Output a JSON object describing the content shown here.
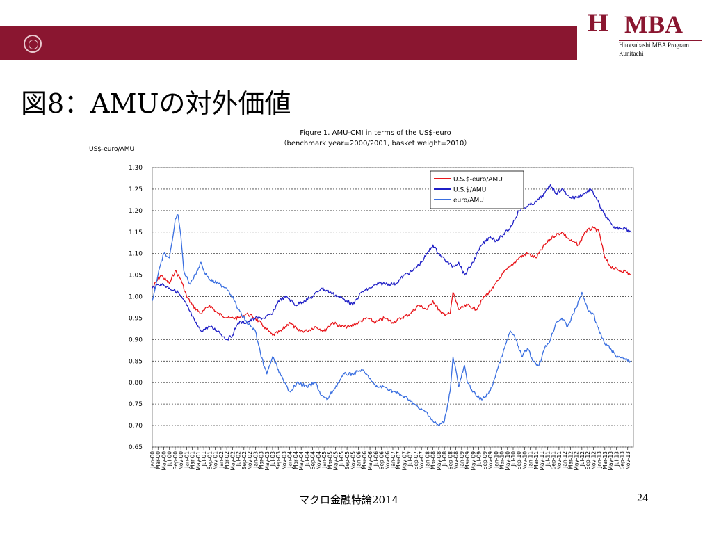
{
  "slide": {
    "title": "図8：AMUの対外価値",
    "footer": "マクロ金融特論2014",
    "page_number": "24"
  },
  "logo": {
    "mark": "H",
    "name": "MBA",
    "line1": "Hitotsubashi MBA Program",
    "line2": "Kunitachi"
  },
  "colors": {
    "band": "#8a1630",
    "usd_euro": "#e8161b",
    "usd": "#1f1fc6",
    "euro": "#3a6fe0"
  },
  "chart_data": {
    "type": "line",
    "title": "Figure 1. AMU-CMI in terms of the US$-euro",
    "subtitle": "（benchmark year=2000/2001, basket weight=2010）",
    "ylabel": "US$-euro/AMU",
    "xlabel": "",
    "ylim": [
      0.65,
      1.3
    ],
    "yticks": [
      "1.30",
      "1.25",
      "1.20",
      "1.15",
      "1.10",
      "1.05",
      "1.00",
      "0.95",
      "0.90",
      "0.85",
      "0.80",
      "0.75",
      "0.70",
      "0.65"
    ],
    "grid": true,
    "legend_position": "top-right",
    "x_ticks": [
      "Jan-00",
      "Mar-00",
      "May-00",
      "Jul-00",
      "Sep-00",
      "Nov-00",
      "Jan-01",
      "Mar-01",
      "May-01",
      "Jul-01",
      "Sep-01",
      "Nov-01",
      "Jan-02",
      "Mar-02",
      "May-02",
      "Jul-02",
      "Sep-02",
      "Nov-02",
      "Jan-03",
      "Mar-03",
      "May-03",
      "Jul-03",
      "Sep-03",
      "Nov-03",
      "Jan-04",
      "Mar-04",
      "May-04",
      "Jul-04",
      "Sep-04",
      "Nov-04",
      "Jan-05",
      "Mar-05",
      "May-05",
      "Jul-05",
      "Sep-05",
      "Nov-05",
      "Jan-06",
      "Mar-06",
      "May-06",
      "Jul-06",
      "Sep-06",
      "Nov-06",
      "Jan-07",
      "Mar-07",
      "May-07",
      "Jul-07",
      "Sep-07",
      "Nov-07",
      "Jan-08",
      "Mar-08",
      "May-08",
      "Jul-08",
      "Sep-08",
      "Nov-08",
      "Jan-09",
      "Mar-09",
      "May-09",
      "Jul-09",
      "Sep-09",
      "Nov-09",
      "Jan-10",
      "Mar-10",
      "May-10",
      "Jul-10",
      "Sep-10",
      "Nov-10",
      "Jan-11",
      "Mar-11",
      "May-11",
      "Jul-11",
      "Sep-11",
      "Nov-11",
      "Jan-12",
      "Mar-12",
      "May-12",
      "Jul-12",
      "Sep-12",
      "Nov-12",
      "Jan-13",
      "Mar-13",
      "May-13",
      "Jul-13",
      "Sep-13",
      "Nov-13"
    ],
    "x_range": [
      "Jan-00",
      "Dec-13"
    ],
    "series": [
      {
        "name": "U.S.$-euro/AMU",
        "color": "#e8161b",
        "points": [
          [
            "Jan-00",
            1.02
          ],
          [
            "Apr-00",
            1.05
          ],
          [
            "Jul-00",
            1.03
          ],
          [
            "Sep-00",
            1.06
          ],
          [
            "Nov-00",
            1.04
          ],
          [
            "Jan-01",
            1.0
          ],
          [
            "Mar-01",
            0.98
          ],
          [
            "Jun-01",
            0.96
          ],
          [
            "Sep-01",
            0.98
          ],
          [
            "Dec-01",
            0.96
          ],
          [
            "Apr-02",
            0.95
          ],
          [
            "Jul-02",
            0.95
          ],
          [
            "Oct-02",
            0.96
          ],
          [
            "Jan-03",
            0.95
          ],
          [
            "Apr-03",
            0.93
          ],
          [
            "Jul-03",
            0.91
          ],
          [
            "Oct-03",
            0.92
          ],
          [
            "Jan-04",
            0.94
          ],
          [
            "Apr-04",
            0.92
          ],
          [
            "Jul-04",
            0.92
          ],
          [
            "Oct-04",
            0.93
          ],
          [
            "Jan-05",
            0.92
          ],
          [
            "Apr-05",
            0.94
          ],
          [
            "Jul-05",
            0.93
          ],
          [
            "Oct-05",
            0.93
          ],
          [
            "Jan-06",
            0.94
          ],
          [
            "Apr-06",
            0.95
          ],
          [
            "Jul-06",
            0.94
          ],
          [
            "Oct-06",
            0.95
          ],
          [
            "Jan-07",
            0.94
          ],
          [
            "Apr-07",
            0.95
          ],
          [
            "Jul-07",
            0.96
          ],
          [
            "Oct-07",
            0.98
          ],
          [
            "Jan-08",
            0.97
          ],
          [
            "Mar-08",
            0.99
          ],
          [
            "Jun-08",
            0.96
          ],
          [
            "Sep-08",
            0.96
          ],
          [
            "Oct-08",
            1.01
          ],
          [
            "Dec-08",
            0.97
          ],
          [
            "Mar-09",
            0.98
          ],
          [
            "Jun-09",
            0.97
          ],
          [
            "Sep-09",
            1.0
          ],
          [
            "Dec-09",
            1.02
          ],
          [
            "Mar-10",
            1.05
          ],
          [
            "Jun-10",
            1.07
          ],
          [
            "Sep-10",
            1.09
          ],
          [
            "Dec-10",
            1.1
          ],
          [
            "Mar-11",
            1.09
          ],
          [
            "Jun-11",
            1.12
          ],
          [
            "Sep-11",
            1.14
          ],
          [
            "Dec-11",
            1.15
          ],
          [
            "Mar-12",
            1.13
          ],
          [
            "Jun-12",
            1.12
          ],
          [
            "Aug-12",
            1.15
          ],
          [
            "Nov-12",
            1.16
          ],
          [
            "Jan-13",
            1.15
          ],
          [
            "Mar-13",
            1.09
          ],
          [
            "May-13",
            1.07
          ],
          [
            "Aug-13",
            1.06
          ],
          [
            "Oct-13",
            1.06
          ],
          [
            "Dec-13",
            1.05
          ]
        ]
      },
      {
        "name": "U.S.$/AMU",
        "color": "#1f1fc6",
        "points": [
          [
            "Jan-00",
            1.02
          ],
          [
            "Apr-00",
            1.03
          ],
          [
            "Jul-00",
            1.02
          ],
          [
            "Oct-00",
            1.01
          ],
          [
            "Jan-01",
            0.98
          ],
          [
            "Apr-01",
            0.94
          ],
          [
            "Jun-01",
            0.92
          ],
          [
            "Sep-01",
            0.93
          ],
          [
            "Dec-01",
            0.92
          ],
          [
            "Mar-02",
            0.9
          ],
          [
            "May-02",
            0.91
          ],
          [
            "Jul-02",
            0.94
          ],
          [
            "Oct-02",
            0.94
          ],
          [
            "Jan-03",
            0.95
          ],
          [
            "Apr-03",
            0.95
          ],
          [
            "Jul-03",
            0.96
          ],
          [
            "Sep-03",
            0.99
          ],
          [
            "Dec-03",
            1.0
          ],
          [
            "Mar-04",
            0.98
          ],
          [
            "Jun-04",
            0.99
          ],
          [
            "Sep-04",
            1.0
          ],
          [
            "Dec-04",
            1.02
          ],
          [
            "Mar-05",
            1.01
          ],
          [
            "Jun-05",
            1.0
          ],
          [
            "Sep-05",
            0.99
          ],
          [
            "Nov-05",
            0.98
          ],
          [
            "Feb-06",
            1.01
          ],
          [
            "May-06",
            1.02
          ],
          [
            "Aug-06",
            1.03
          ],
          [
            "Nov-06",
            1.03
          ],
          [
            "Feb-07",
            1.03
          ],
          [
            "May-07",
            1.05
          ],
          [
            "Aug-07",
            1.06
          ],
          [
            "Nov-07",
            1.08
          ],
          [
            "Jan-08",
            1.1
          ],
          [
            "Mar-08",
            1.12
          ],
          [
            "May-08",
            1.1
          ],
          [
            "Aug-08",
            1.08
          ],
          [
            "Oct-08",
            1.07
          ],
          [
            "Dec-08",
            1.08
          ],
          [
            "Feb-09",
            1.05
          ],
          [
            "May-09",
            1.08
          ],
          [
            "Aug-09",
            1.12
          ],
          [
            "Nov-09",
            1.14
          ],
          [
            "Jan-10",
            1.13
          ],
          [
            "Mar-10",
            1.14
          ],
          [
            "Jun-10",
            1.16
          ],
          [
            "Sep-10",
            1.2
          ],
          [
            "Dec-10",
            1.21
          ],
          [
            "Mar-11",
            1.22
          ],
          [
            "Jun-11",
            1.24
          ],
          [
            "Aug-11",
            1.26
          ],
          [
            "Oct-11",
            1.24
          ],
          [
            "Dec-11",
            1.25
          ],
          [
            "Mar-12",
            1.23
          ],
          [
            "May-12",
            1.23
          ],
          [
            "Aug-12",
            1.24
          ],
          [
            "Oct-12",
            1.25
          ],
          [
            "Dec-12",
            1.23
          ],
          [
            "Feb-13",
            1.2
          ],
          [
            "Apr-13",
            1.18
          ],
          [
            "Jun-13",
            1.16
          ],
          [
            "Aug-13",
            1.16
          ],
          [
            "Oct-13",
            1.16
          ],
          [
            "Dec-13",
            1.15
          ]
        ]
      },
      {
        "name": "euro/AMU",
        "color": "#3a6fe0",
        "points": [
          [
            "Jan-00",
            0.99
          ],
          [
            "Mar-00",
            1.05
          ],
          [
            "May-00",
            1.1
          ],
          [
            "Jul-00",
            1.09
          ],
          [
            "Aug-00",
            1.13
          ],
          [
            "Sep-00",
            1.18
          ],
          [
            "Oct-00",
            1.19
          ],
          [
            "Nov-00",
            1.14
          ],
          [
            "Dec-00",
            1.06
          ],
          [
            "Feb-01",
            1.03
          ],
          [
            "Apr-01",
            1.05
          ],
          [
            "Jun-01",
            1.08
          ],
          [
            "Jul-01",
            1.06
          ],
          [
            "Sep-01",
            1.04
          ],
          [
            "Dec-01",
            1.03
          ],
          [
            "Mar-02",
            1.02
          ],
          [
            "May-02",
            1.0
          ],
          [
            "Jul-02",
            0.97
          ],
          [
            "Oct-02",
            0.94
          ],
          [
            "Jan-03",
            0.92
          ],
          [
            "Mar-03",
            0.86
          ],
          [
            "May-03",
            0.82
          ],
          [
            "Jul-03",
            0.86
          ],
          [
            "Sep-03",
            0.83
          ],
          [
            "Nov-03",
            0.8
          ],
          [
            "Jan-04",
            0.78
          ],
          [
            "Apr-04",
            0.8
          ],
          [
            "Jul-04",
            0.79
          ],
          [
            "Oct-04",
            0.8
          ],
          [
            "Dec-04",
            0.77
          ],
          [
            "Feb-05",
            0.76
          ],
          [
            "Apr-05",
            0.78
          ],
          [
            "Jun-05",
            0.8
          ],
          [
            "Aug-05",
            0.82
          ],
          [
            "Nov-05",
            0.82
          ],
          [
            "Feb-06",
            0.83
          ],
          [
            "May-06",
            0.81
          ],
          [
            "Jul-06",
            0.79
          ],
          [
            "Oct-06",
            0.79
          ],
          [
            "Jan-07",
            0.78
          ],
          [
            "Apr-07",
            0.77
          ],
          [
            "Jul-07",
            0.76
          ],
          [
            "Oct-07",
            0.74
          ],
          [
            "Jan-08",
            0.73
          ],
          [
            "Mar-08",
            0.71
          ],
          [
            "May-08",
            0.7
          ],
          [
            "Jul-08",
            0.71
          ],
          [
            "Sep-08",
            0.78
          ],
          [
            "Oct-08",
            0.86
          ],
          [
            "Nov-08",
            0.83
          ],
          [
            "Dec-08",
            0.79
          ],
          [
            "Feb-09",
            0.84
          ],
          [
            "Mar-09",
            0.8
          ],
          [
            "Jun-09",
            0.77
          ],
          [
            "Aug-09",
            0.76
          ],
          [
            "Nov-09",
            0.78
          ],
          [
            "Jan-10",
            0.82
          ],
          [
            "Apr-10",
            0.88
          ],
          [
            "Jun-10",
            0.92
          ],
          [
            "Aug-10",
            0.9
          ],
          [
            "Oct-10",
            0.86
          ],
          [
            "Dec-10",
            0.88
          ],
          [
            "Feb-11",
            0.85
          ],
          [
            "Apr-11",
            0.84
          ],
          [
            "Jun-11",
            0.88
          ],
          [
            "Aug-11",
            0.9
          ],
          [
            "Oct-11",
            0.94
          ],
          [
            "Dec-11",
            0.95
          ],
          [
            "Feb-12",
            0.93
          ],
          [
            "Apr-12",
            0.96
          ],
          [
            "Jun-12",
            0.99
          ],
          [
            "Jul-12",
            1.01
          ],
          [
            "Sep-12",
            0.97
          ],
          [
            "Nov-12",
            0.96
          ],
          [
            "Jan-13",
            0.92
          ],
          [
            "Mar-13",
            0.89
          ],
          [
            "May-13",
            0.88
          ],
          [
            "Jul-13",
            0.86
          ],
          [
            "Sep-13",
            0.86
          ],
          [
            "Nov-13",
            0.85
          ],
          [
            "Dec-13",
            0.85
          ]
        ]
      }
    ]
  }
}
